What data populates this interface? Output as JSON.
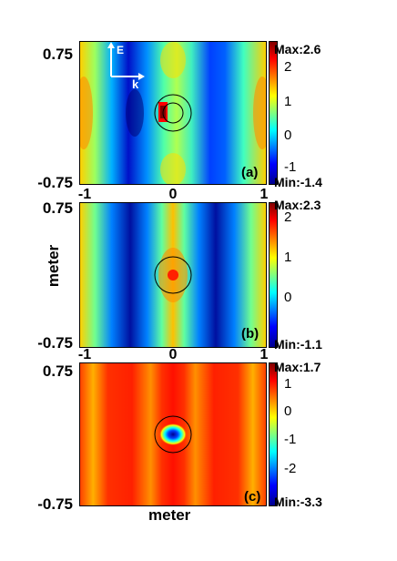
{
  "chart_data": [
    {
      "type": "heatmap",
      "panel_label": "(a)",
      "yticks": [
        "0.75",
        "-0.75"
      ],
      "xticks": [
        "-1",
        "0",
        "1"
      ],
      "colorbar": {
        "max_label": "Max:2.6",
        "min_label": "Min:-1.4",
        "ticks": [
          "2",
          "1",
          "0",
          "-1"
        ],
        "max": 2.6,
        "min": -1.4
      },
      "scatterer": "circle",
      "annotations": {
        "e_label": "E",
        "k_label": "k"
      }
    },
    {
      "type": "heatmap",
      "panel_label": "(b)",
      "yticks": [
        "0.75",
        "-0.75"
      ],
      "xticks": [
        "-1",
        "0",
        "1"
      ],
      "colorbar": {
        "max_label": "Max:2.3",
        "min_label": "Min:-1.1",
        "ticks": [
          "2",
          "1",
          "0"
        ],
        "max": 2.3,
        "min": -1.1
      },
      "scatterer": "circle"
    },
    {
      "type": "heatmap",
      "panel_label": "(c)",
      "yticks": [
        "0.75",
        "-0.75"
      ],
      "xticks": [],
      "colorbar": {
        "max_label": "Max:1.7",
        "min_label": "Min:-3.3",
        "ticks": [
          "1",
          "0",
          "-1",
          "-2"
        ],
        "max": 1.7,
        "min": -3.3
      },
      "scatterer": "circle"
    }
  ],
  "ylabel": "meter",
  "xlabel": "meter",
  "colormap": [
    "#00008f",
    "#0000ff",
    "#00ffff",
    "#ffff00",
    "#ff0000",
    "#800000"
  ]
}
